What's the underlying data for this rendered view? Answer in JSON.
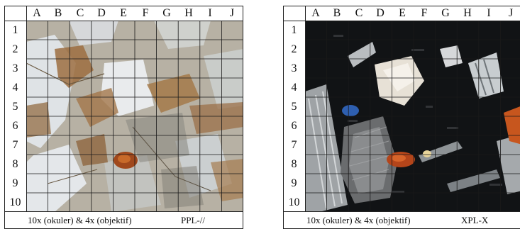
{
  "columns": [
    "A",
    "B",
    "C",
    "D",
    "E",
    "F",
    "G",
    "H",
    "I",
    "J"
  ],
  "rows": [
    "1",
    "2",
    "3",
    "4",
    "5",
    "6",
    "7",
    "8",
    "9",
    "10"
  ],
  "panels": [
    {
      "magnification": "10x (okuler) & 4x (objektif)",
      "mode": "PPL-//"
    },
    {
      "magnification": "10x (okuler) & 4x (objektif)",
      "mode": "XPL-X"
    }
  ],
  "colors": {
    "ppl_base": "#b9b3a6",
    "ppl_brown": "#9a6d3f",
    "xpl_base": "#111315",
    "xpl_orange": "#c7561e",
    "xpl_blue": "#2e5fb0",
    "grid": "#1a1a1a"
  }
}
